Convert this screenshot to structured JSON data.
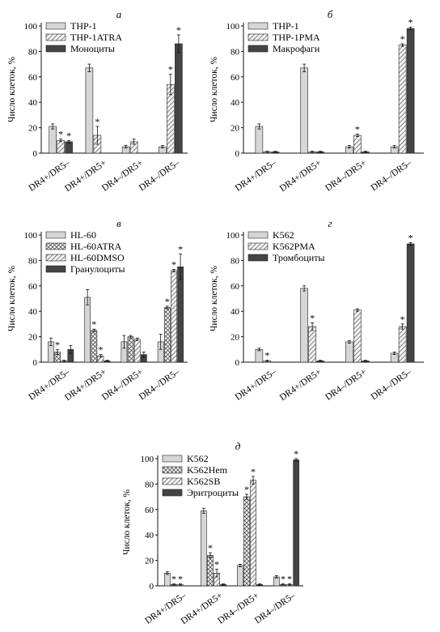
{
  "chart_data": [
    {
      "panel": "а",
      "type": "bar",
      "ylabel": "Число клеток, %",
      "ylim": [
        0,
        100
      ],
      "yticks": [
        0,
        20,
        40,
        60,
        80,
        100
      ],
      "categories": [
        "DR4+/DR5–",
        "DR4+/DR5+",
        "DR4–/DR5+",
        "DR4–/DR5–"
      ],
      "legend_position": "top-left",
      "series": [
        {
          "name": "THP-1",
          "pattern": "light",
          "values": [
            21,
            67,
            5,
            5
          ],
          "errors": [
            2,
            3,
            1,
            1
          ],
          "stars": [
            false,
            false,
            false,
            false
          ]
        },
        {
          "name": "THP-1ATRA",
          "pattern": "hatch",
          "values": [
            10,
            14,
            9,
            54
          ],
          "errors": [
            1,
            7,
            2,
            8
          ],
          "stars": [
            true,
            true,
            false,
            true
          ]
        },
        {
          "name": "Моноциты",
          "pattern": "dark",
          "values": [
            9,
            0,
            0,
            86
          ],
          "errors": [
            1,
            0,
            0,
            7
          ],
          "stars": [
            true,
            false,
            false,
            true
          ]
        }
      ]
    },
    {
      "panel": "б",
      "type": "bar",
      "ylabel": "Число клеток, %",
      "ylim": [
        0,
        100
      ],
      "yticks": [
        0,
        20,
        40,
        60,
        80,
        100
      ],
      "categories": [
        "DR4+/DR5–",
        "DR4+/DR5+",
        "DR4–/DR5+",
        "DR4–/DR5–"
      ],
      "legend_position": "top-left",
      "series": [
        {
          "name": "THP-1",
          "pattern": "light",
          "values": [
            21,
            67,
            5,
            5
          ],
          "errors": [
            2,
            3,
            1,
            1
          ],
          "stars": [
            false,
            false,
            false,
            false
          ]
        },
        {
          "name": "THP-1PMA",
          "pattern": "hatch",
          "values": [
            1,
            1,
            14,
            85
          ],
          "errors": [
            0.5,
            0.5,
            1,
            1
          ],
          "stars": [
            false,
            false,
            true,
            true
          ]
        },
        {
          "name": "Макрофаги",
          "pattern": "dark",
          "values": [
            1,
            1,
            1,
            98
          ],
          "errors": [
            0.5,
            0.5,
            0.5,
            1
          ],
          "stars": [
            false,
            false,
            false,
            true
          ]
        }
      ]
    },
    {
      "panel": "в",
      "type": "bar",
      "ylabel": "Число клеток, %",
      "ylim": [
        0,
        100
      ],
      "yticks": [
        0,
        20,
        40,
        60,
        80,
        100
      ],
      "categories": [
        "DR4+/DR5–",
        "DR4+/DR5+",
        "DR4–/DR5+",
        "DR4–/DR5–"
      ],
      "legend_position": "top-left",
      "series": [
        {
          "name": "HL-60",
          "pattern": "light",
          "values": [
            16,
            51,
            16,
            16
          ],
          "errors": [
            3,
            6,
            5,
            6
          ],
          "stars": [
            false,
            false,
            false,
            false
          ]
        },
        {
          "name": "HL-60ATRA",
          "pattern": "cross",
          "values": [
            8,
            25,
            20,
            43
          ],
          "errors": [
            2,
            1,
            1,
            1
          ],
          "stars": [
            true,
            true,
            false,
            true
          ]
        },
        {
          "name": "HL-60DMSO",
          "pattern": "hatch",
          "values": [
            1,
            5,
            18,
            72
          ],
          "errors": [
            0.5,
            1,
            1,
            1
          ],
          "stars": [
            false,
            true,
            false,
            true
          ]
        },
        {
          "name": "Гранулоциты",
          "pattern": "dark",
          "values": [
            10,
            1,
            6,
            75
          ],
          "errors": [
            3,
            0.5,
            2,
            10
          ],
          "stars": [
            false,
            false,
            false,
            true
          ]
        }
      ]
    },
    {
      "panel": "г",
      "type": "bar",
      "ylabel": "Число клеток, %",
      "ylim": [
        0,
        100
      ],
      "yticks": [
        0,
        20,
        40,
        60,
        80,
        100
      ],
      "categories": [
        "DR4+/DR5–",
        "DR4+/DR5+",
        "DR4–/DR5+",
        "DR4–/DR5–"
      ],
      "legend_position": "top-left",
      "series": [
        {
          "name": "K562",
          "pattern": "light",
          "values": [
            10,
            58,
            16,
            7
          ],
          "errors": [
            1,
            2,
            1,
            1
          ],
          "stars": [
            false,
            false,
            false,
            false
          ]
        },
        {
          "name": "K562PMA",
          "pattern": "hatch",
          "values": [
            1,
            28,
            41,
            28
          ],
          "errors": [
            0.5,
            3,
            1,
            2
          ],
          "stars": [
            true,
            true,
            false,
            true
          ]
        },
        {
          "name": "Тромбоциты",
          "pattern": "dark",
          "values": [
            0,
            1,
            1,
            93
          ],
          "errors": [
            0,
            0.5,
            0.5,
            1
          ],
          "stars": [
            false,
            false,
            false,
            true
          ]
        }
      ]
    },
    {
      "panel": "д",
      "type": "bar",
      "ylabel": "Число клеток, %",
      "ylim": [
        0,
        100
      ],
      "yticks": [
        0,
        20,
        40,
        60,
        80,
        100
      ],
      "categories": [
        "DR4+/DR5–",
        "DR4+/DR5+",
        "DR4–/DR5+",
        "DR4–/DR5–"
      ],
      "legend_position": "top-left",
      "series": [
        {
          "name": "K562",
          "pattern": "light",
          "values": [
            10,
            59,
            16,
            7
          ],
          "errors": [
            1,
            2,
            1,
            1
          ],
          "stars": [
            false,
            false,
            false,
            false
          ]
        },
        {
          "name": "K562Hem",
          "pattern": "cross",
          "values": [
            1,
            24,
            70,
            1
          ],
          "errors": [
            0.5,
            2,
            2,
            0.5
          ],
          "stars": [
            true,
            true,
            true,
            true
          ]
        },
        {
          "name": "K562SB",
          "pattern": "hatch",
          "values": [
            1,
            10,
            83,
            1
          ],
          "errors": [
            0.5,
            3,
            3,
            0.5
          ],
          "stars": [
            true,
            true,
            true,
            true
          ]
        },
        {
          "name": "Эритроциты",
          "pattern": "dark",
          "values": [
            0,
            1,
            1,
            99
          ],
          "errors": [
            0,
            0.5,
            0.5,
            1
          ],
          "stars": [
            false,
            false,
            false,
            true
          ]
        }
      ]
    }
  ]
}
